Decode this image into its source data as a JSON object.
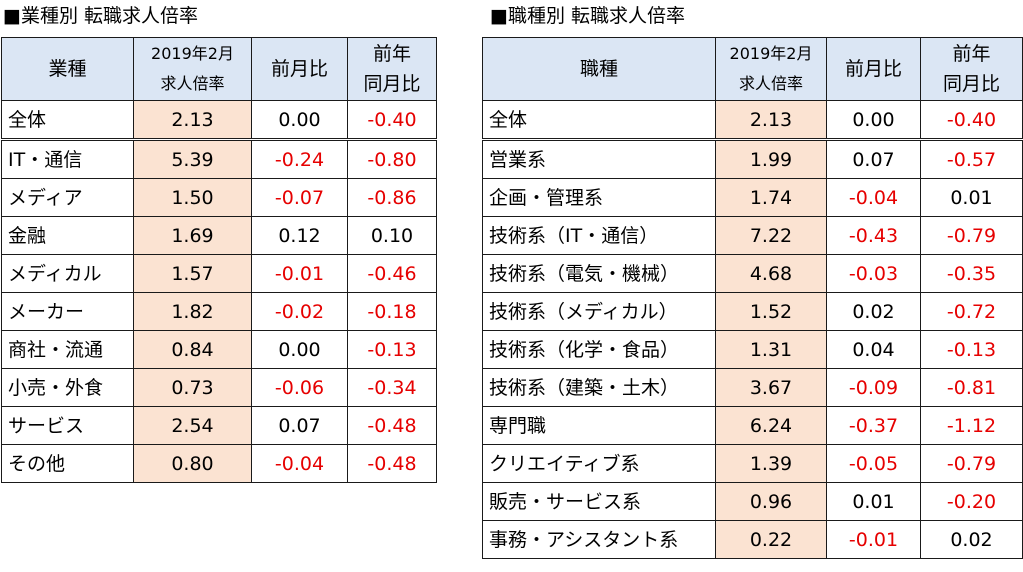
{
  "left": {
    "title": "■業種別 転職求人倍率",
    "headers": {
      "label": "業種",
      "rate_line1": "2019年2月",
      "rate_line2": "求人倍率",
      "mom": "前月比",
      "yoy_line1": "前年",
      "yoy_line2": "同月比"
    },
    "rows": [
      {
        "label": "全体",
        "rate": "2.13",
        "mom": "0.00",
        "yoy": "-0.40"
      },
      {
        "label": "IT・通信",
        "rate": "5.39",
        "mom": "-0.24",
        "yoy": "-0.80"
      },
      {
        "label": "メディア",
        "rate": "1.50",
        "mom": "-0.07",
        "yoy": "-0.86"
      },
      {
        "label": "金融",
        "rate": "1.69",
        "mom": "0.12",
        "yoy": "0.10"
      },
      {
        "label": "メディカル",
        "rate": "1.57",
        "mom": "-0.01",
        "yoy": "-0.46"
      },
      {
        "label": "メーカー",
        "rate": "1.82",
        "mom": "-0.02",
        "yoy": "-0.18"
      },
      {
        "label": "商社・流通",
        "rate": "0.84",
        "mom": "0.00",
        "yoy": "-0.13"
      },
      {
        "label": "小売・外食",
        "rate": "0.73",
        "mom": "-0.06",
        "yoy": "-0.34"
      },
      {
        "label": "サービス",
        "rate": "2.54",
        "mom": "0.07",
        "yoy": "-0.48"
      },
      {
        "label": "その他",
        "rate": "0.80",
        "mom": "-0.04",
        "yoy": "-0.48"
      }
    ]
  },
  "right": {
    "title": "■職種別 転職求人倍率",
    "headers": {
      "label": "職種",
      "rate_line1": "2019年2月",
      "rate_line2": "求人倍率",
      "mom": "前月比",
      "yoy_line1": "前年",
      "yoy_line2": "同月比"
    },
    "rows": [
      {
        "label": "全体",
        "rate": "2.13",
        "mom": "0.00",
        "yoy": "-0.40"
      },
      {
        "label": "営業系",
        "rate": "1.99",
        "mom": "0.07",
        "yoy": "-0.57"
      },
      {
        "label": "企画・管理系",
        "rate": "1.74",
        "mom": "-0.04",
        "yoy": "0.01"
      },
      {
        "label": "技術系（IT・通信）",
        "rate": "7.22",
        "mom": "-0.43",
        "yoy": "-0.79"
      },
      {
        "label": "技術系（電気・機械）",
        "rate": "4.68",
        "mom": "-0.03",
        "yoy": "-0.35"
      },
      {
        "label": "技術系（メディカル）",
        "rate": "1.52",
        "mom": "0.02",
        "yoy": "-0.72"
      },
      {
        "label": "技術系（化学・食品）",
        "rate": "1.31",
        "mom": "0.04",
        "yoy": "-0.13"
      },
      {
        "label": "技術系（建築・土木）",
        "rate": "3.67",
        "mom": "-0.09",
        "yoy": "-0.81"
      },
      {
        "label": "専門職",
        "rate": "6.24",
        "mom": "-0.37",
        "yoy": "-1.12"
      },
      {
        "label": "クリエイティブ系",
        "rate": "1.39",
        "mom": "-0.05",
        "yoy": "-0.79"
      },
      {
        "label": "販売・サービス系",
        "rate": "0.96",
        "mom": "0.01",
        "yoy": "-0.20"
      },
      {
        "label": "事務・アシスタント系",
        "rate": "0.22",
        "mom": "-0.01",
        "yoy": "0.02"
      }
    ]
  },
  "colors": {
    "header_bg": "#dbe6f4",
    "rate_bg": "#fbe3d2",
    "negative": "#e60000"
  }
}
